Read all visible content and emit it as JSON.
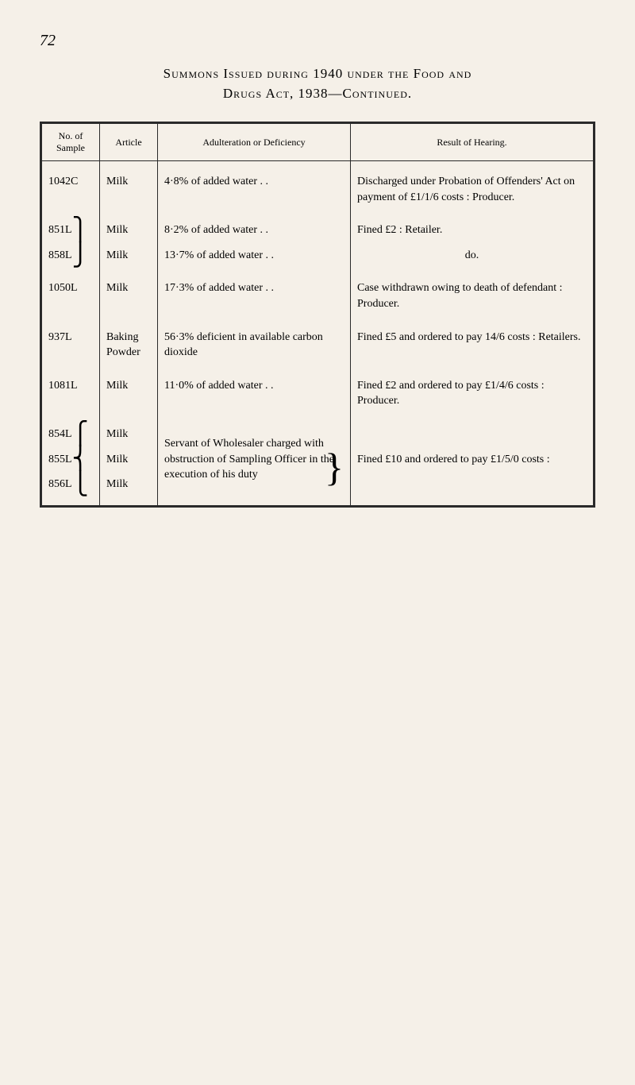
{
  "page_number": "72",
  "title_part1": "Summons Issued during 1940 under the Food and",
  "title_part2": "Drugs Act, 1938—Continued.",
  "headers": {
    "col1": "No. of Sample",
    "col2": "Article",
    "col3": "Adulteration or Deficiency",
    "col4": "Result of Hearing."
  },
  "rows": [
    {
      "sample": "1042C",
      "article": "Milk",
      "adulteration": "4·8% of added water    . .",
      "result": "Discharged under Probation of Offenders' Act on payment of £1/1/6 costs : Producer."
    },
    {
      "sample": "851L",
      "bracket_open": true,
      "article": "Milk",
      "adulteration": "8·2% of added water    . .",
      "result": "Fined £2 : Retailer."
    },
    {
      "sample": "858L",
      "bracket_close": true,
      "article": "Milk",
      "adulteration": "13·7% of added water   . .",
      "result": "do."
    },
    {
      "sample": "1050L",
      "article": "Milk",
      "adulteration": "17·3% of added water   . .",
      "result": "Case withdrawn owing to death of defendant : Producer."
    },
    {
      "sample": "937L",
      "article": "Baking Powder",
      "adulteration": "56·3% deficient in available carbon dioxide",
      "result": "Fined £5 and ordered to pay 14/6 costs : Retailers."
    },
    {
      "sample": "1081L",
      "article": "Milk",
      "adulteration": "11·0% of added water   . .",
      "result": "Fined £2 and ordered to pay £1/4/6 costs : Producer."
    },
    {
      "sample": "854L",
      "bracket3_1": true,
      "article": "Milk",
      "adulteration_multi_1": "Servant of Wholesaler",
      "result_empty": true
    },
    {
      "sample": "855L",
      "bracket3_2": true,
      "article": "Milk",
      "adulteration_multi_2": "charged with obstruction of Sampling Officer in the execution of his duty",
      "result": "Fined £10 and ordered to pay £1/5/0 costs :"
    },
    {
      "sample": "856L",
      "bracket3_3": true,
      "article": "Milk",
      "adulteration_empty": true,
      "result_empty": true
    }
  ]
}
